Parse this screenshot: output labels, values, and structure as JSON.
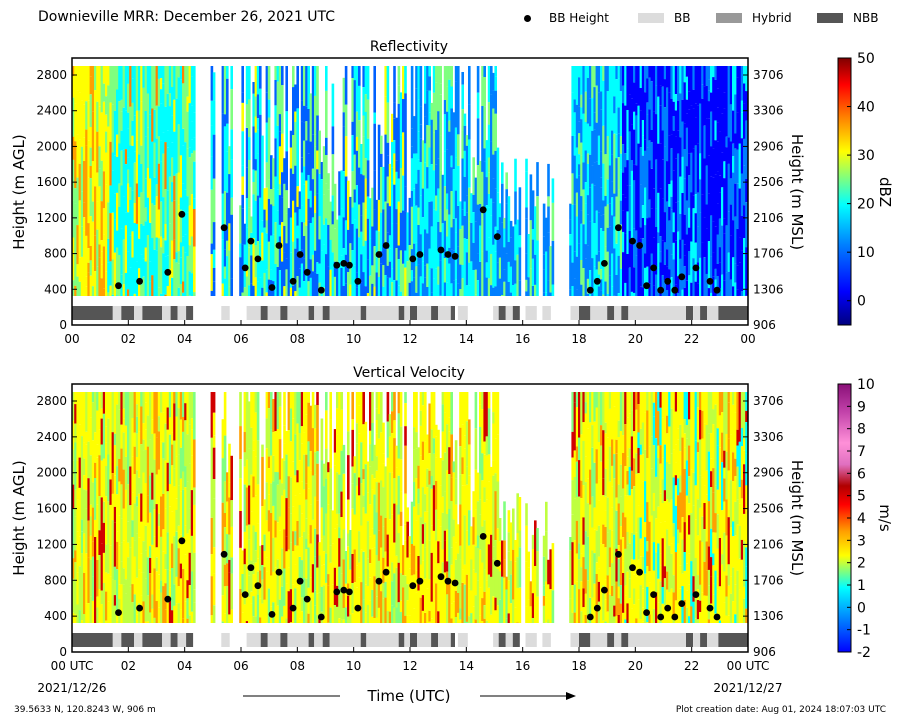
{
  "header": {
    "title": "Downieville MRR:  December 26, 2021 UTC",
    "legend": [
      {
        "label": "BB Height",
        "kind": "dot",
        "color": "#000000"
      },
      {
        "label": "BB",
        "kind": "box",
        "color": "#dcdcdc"
      },
      {
        "label": "Hybrid",
        "kind": "box",
        "color": "#999999"
      },
      {
        "label": "NBB",
        "kind": "box",
        "color": "#555555"
      }
    ]
  },
  "footer": {
    "location": "39.5633 N, 120.8243 W, 906 m",
    "created": "Plot creation date: Aug 01, 2024 18:07:03 UTC"
  },
  "axis": {
    "xlabel": "Time (UTC)",
    "xticks": [
      "00",
      "02",
      "04",
      "06",
      "08",
      "10",
      "12",
      "14",
      "16",
      "18",
      "20",
      "22",
      "00"
    ],
    "xticks_bottom": [
      "00 UTC",
      "02",
      "04",
      "06",
      "08",
      "10",
      "12",
      "14",
      "16",
      "18",
      "20",
      "22",
      "00 UTC"
    ],
    "start_date": "2021/12/26",
    "end_date": "2021/12/27",
    "yleft_label": "Height (m AGL)",
    "yright_label": "Height (m MSL)",
    "yleft_ticks": [
      "0",
      "400",
      "800",
      "1200",
      "1600",
      "2000",
      "2400",
      "2800"
    ],
    "yright_ticks": [
      "906",
      "1306",
      "1706",
      "2106",
      "2506",
      "2906",
      "3306",
      "3706"
    ]
  },
  "colors": {
    "colormap": [
      "#00007f",
      "#0000ff",
      "#007fff",
      "#00ffff",
      "#7fff7f",
      "#ffff00",
      "#ff7f00",
      "#ff0000",
      "#7f0000"
    ],
    "vv_extra": [
      "#d060c0",
      "#ff80d0",
      "#a0208a"
    ]
  },
  "chart_data": [
    {
      "type": "heatmap",
      "title": "Reflectivity",
      "colorbar_label": "dBZ",
      "colorbar_ticks": [
        "50",
        "40",
        "30",
        "20",
        "10",
        "0"
      ],
      "colorbar_range": [
        -5,
        50
      ],
      "ylim_agl": [
        0,
        3000
      ],
      "xlim_hours": [
        0,
        24
      ],
      "xlabel": "",
      "ylabel": "Height (m AGL)"
    },
    {
      "type": "heatmap",
      "title": "Vertical Velocity",
      "colorbar_label": "m/s",
      "colorbar_ticks": [
        "10",
        "9",
        "8",
        "7",
        "6",
        "5",
        "4",
        "3",
        "2",
        "1",
        "0",
        "-1",
        "-2"
      ],
      "colorbar_range": [
        -2,
        10
      ],
      "ylim_agl": [
        0,
        3000
      ],
      "xlim_hours": [
        0,
        24
      ],
      "xlabel": "Time (UTC)",
      "ylabel": "Height (m AGL)"
    }
  ],
  "bb_height_points": [
    {
      "hour": 1.65,
      "agl": 440
    },
    {
      "hour": 2.4,
      "agl": 490
    },
    {
      "hour": 3.4,
      "agl": 590
    },
    {
      "hour": 3.9,
      "agl": 1240
    },
    {
      "hour": 5.4,
      "agl": 1090
    },
    {
      "hour": 6.15,
      "agl": 640
    },
    {
      "hour": 6.35,
      "agl": 940
    },
    {
      "hour": 6.6,
      "agl": 740
    },
    {
      "hour": 7.1,
      "agl": 420
    },
    {
      "hour": 7.35,
      "agl": 890
    },
    {
      "hour": 7.85,
      "agl": 490
    },
    {
      "hour": 8.1,
      "agl": 790
    },
    {
      "hour": 8.35,
      "agl": 590
    },
    {
      "hour": 8.85,
      "agl": 390
    },
    {
      "hour": 9.4,
      "agl": 670
    },
    {
      "hour": 9.65,
      "agl": 690
    },
    {
      "hour": 9.85,
      "agl": 670
    },
    {
      "hour": 10.15,
      "agl": 490
    },
    {
      "hour": 10.9,
      "agl": 790
    },
    {
      "hour": 11.15,
      "agl": 890
    },
    {
      "hour": 12.1,
      "agl": 740
    },
    {
      "hour": 12.35,
      "agl": 790
    },
    {
      "hour": 13.1,
      "agl": 840
    },
    {
      "hour": 13.35,
      "agl": 790
    },
    {
      "hour": 13.6,
      "agl": 770
    },
    {
      "hour": 14.6,
      "agl": 1290
    },
    {
      "hour": 15.1,
      "agl": 990
    },
    {
      "hour": 18.4,
      "agl": 390
    },
    {
      "hour": 18.65,
      "agl": 490
    },
    {
      "hour": 18.9,
      "agl": 690
    },
    {
      "hour": 19.4,
      "agl": 1090
    },
    {
      "hour": 19.9,
      "agl": 940
    },
    {
      "hour": 20.15,
      "agl": 890
    },
    {
      "hour": 20.4,
      "agl": 440
    },
    {
      "hour": 20.65,
      "agl": 640
    },
    {
      "hour": 20.9,
      "agl": 390
    },
    {
      "hour": 21.15,
      "agl": 490
    },
    {
      "hour": 21.4,
      "agl": 390
    },
    {
      "hour": 21.65,
      "agl": 540
    },
    {
      "hour": 22.15,
      "agl": 640
    },
    {
      "hour": 22.65,
      "agl": 490
    },
    {
      "hour": 22.9,
      "agl": 390
    }
  ],
  "bb_type_segments": [
    {
      "start": 0.0,
      "end": 1.45,
      "type": "NBB"
    },
    {
      "start": 1.45,
      "end": 1.75,
      "type": "BB"
    },
    {
      "start": 1.75,
      "end": 2.2,
      "type": "NBB"
    },
    {
      "start": 2.2,
      "end": 2.5,
      "type": "BB"
    },
    {
      "start": 2.5,
      "end": 3.2,
      "type": "NBB"
    },
    {
      "start": 3.2,
      "end": 3.5,
      "type": "BB"
    },
    {
      "start": 3.5,
      "end": 3.75,
      "type": "NBB"
    },
    {
      "start": 3.75,
      "end": 4.05,
      "type": "BB"
    },
    {
      "start": 4.05,
      "end": 4.3,
      "type": "NBB"
    },
    {
      "start": 5.3,
      "end": 5.6,
      "type": "BB"
    },
    {
      "start": 6.2,
      "end": 6.7,
      "type": "BB"
    },
    {
      "start": 6.7,
      "end": 6.95,
      "type": "NBB"
    },
    {
      "start": 6.95,
      "end": 7.4,
      "type": "BB"
    },
    {
      "start": 7.4,
      "end": 7.65,
      "type": "NBB"
    },
    {
      "start": 7.65,
      "end": 8.4,
      "type": "BB"
    },
    {
      "start": 8.4,
      "end": 8.6,
      "type": "NBB"
    },
    {
      "start": 8.6,
      "end": 8.9,
      "type": "BB"
    },
    {
      "start": 8.9,
      "end": 9.15,
      "type": "NBB"
    },
    {
      "start": 9.15,
      "end": 10.25,
      "type": "BB"
    },
    {
      "start": 10.25,
      "end": 10.45,
      "type": "NBB"
    },
    {
      "start": 10.45,
      "end": 11.6,
      "type": "BB"
    },
    {
      "start": 11.6,
      "end": 11.8,
      "type": "NBB"
    },
    {
      "start": 11.8,
      "end": 12.0,
      "type": "BB"
    },
    {
      "start": 12.0,
      "end": 12.25,
      "type": "NBB"
    },
    {
      "start": 12.25,
      "end": 12.75,
      "type": "BB"
    },
    {
      "start": 12.75,
      "end": 13.0,
      "type": "NBB"
    },
    {
      "start": 13.0,
      "end": 13.45,
      "type": "BB"
    },
    {
      "start": 13.45,
      "end": 13.6,
      "type": "NBB"
    },
    {
      "start": 13.7,
      "end": 14.05,
      "type": "BB"
    },
    {
      "start": 14.95,
      "end": 15.15,
      "type": "BB"
    },
    {
      "start": 15.15,
      "end": 15.4,
      "type": "NBB"
    },
    {
      "start": 15.4,
      "end": 15.65,
      "type": "BB"
    },
    {
      "start": 15.65,
      "end": 15.9,
      "type": "NBB"
    },
    {
      "start": 16.1,
      "end": 16.5,
      "type": "BB"
    },
    {
      "start": 16.7,
      "end": 17.0,
      "type": "BB"
    },
    {
      "start": 17.7,
      "end": 18.0,
      "type": "BB"
    },
    {
      "start": 18.0,
      "end": 18.4,
      "type": "NBB"
    },
    {
      "start": 18.4,
      "end": 19.0,
      "type": "BB"
    },
    {
      "start": 19.0,
      "end": 19.25,
      "type": "NBB"
    },
    {
      "start": 19.25,
      "end": 19.5,
      "type": "BB"
    },
    {
      "start": 19.5,
      "end": 19.75,
      "type": "NBB"
    },
    {
      "start": 19.75,
      "end": 21.8,
      "type": "BB"
    },
    {
      "start": 21.8,
      "end": 22.05,
      "type": "NBB"
    },
    {
      "start": 22.05,
      "end": 22.3,
      "type": "BB"
    },
    {
      "start": 22.3,
      "end": 22.55,
      "type": "NBB"
    },
    {
      "start": 22.55,
      "end": 22.95,
      "type": "BB"
    },
    {
      "start": 22.95,
      "end": 24.0,
      "type": "NBB"
    }
  ],
  "echo_gaps_hours": [
    [
      4.3,
      4.85
    ],
    [
      5.05,
      5.25
    ],
    [
      5.65,
      5.9
    ],
    [
      15.9,
      16.05
    ],
    [
      16.55,
      16.65
    ],
    [
      17.1,
      17.6
    ]
  ]
}
